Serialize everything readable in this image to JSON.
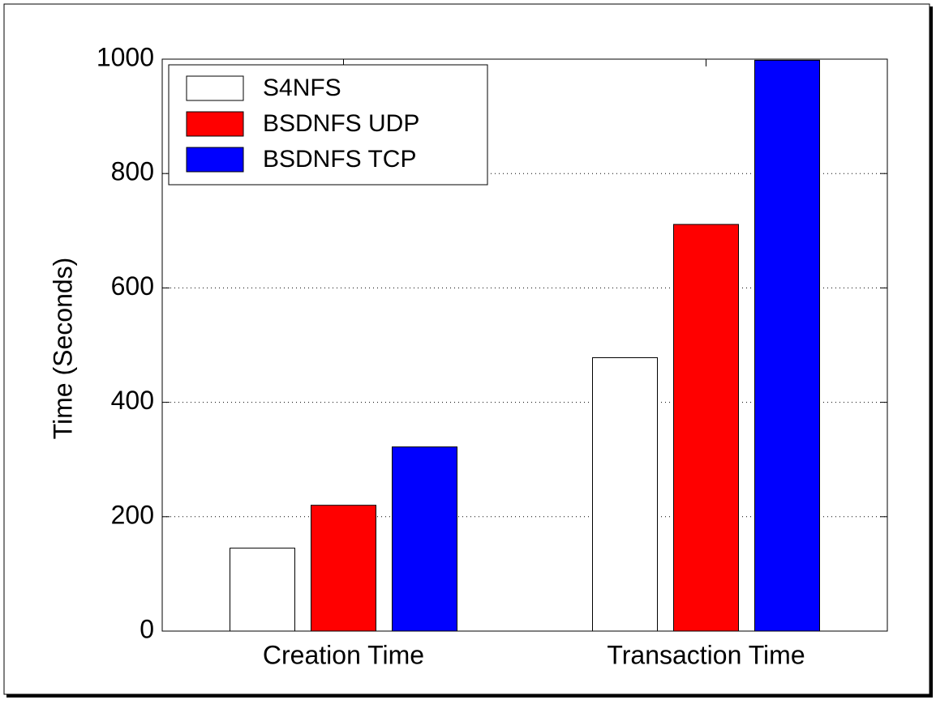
{
  "chart_data": {
    "type": "bar",
    "categories": [
      "Creation Time",
      "Transaction Time"
    ],
    "series": [
      {
        "name": "S4NFS",
        "color": "#ffffff",
        "values": [
          145,
          478
        ]
      },
      {
        "name": "BSDNFS UDP",
        "color": "#ff0000",
        "values": [
          220,
          711
        ]
      },
      {
        "name": "BSDNFS TCP",
        "color": "#0000ff",
        "values": [
          322,
          998
        ]
      }
    ],
    "ylabel": "Time (Seconds)",
    "ylim": [
      0,
      1000
    ],
    "yticks": [
      0,
      200,
      400,
      600,
      800,
      1000
    ],
    "grid": true,
    "legend": "upper left"
  }
}
